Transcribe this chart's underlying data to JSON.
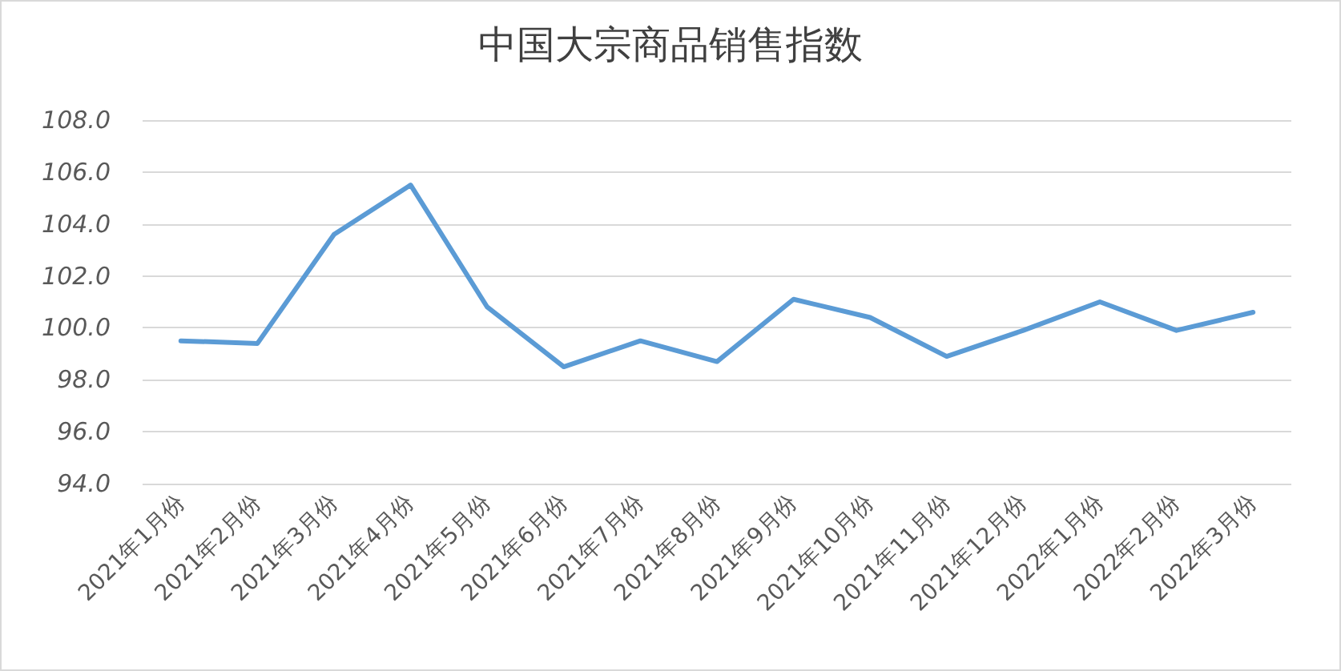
{
  "chart_data": {
    "type": "line",
    "title": "中国大宗商品销售指数",
    "categories": [
      "2021年1月份",
      "2021年2月份",
      "2021年3月份",
      "2021年4月份",
      "2021年5月份",
      "2021年6月份",
      "2021年7月份",
      "2021年8月份",
      "2021年9月份",
      "2021年10月份",
      "2021年11月份",
      "2021年12月份",
      "2022年1月份",
      "2022年2月份",
      "2022年3月份"
    ],
    "series": [
      {
        "color": "#5b9bd5",
        "values": [
          99.5,
          99.4,
          103.6,
          105.5,
          100.8,
          98.5,
          99.5,
          98.7,
          101.1,
          100.4,
          98.9,
          99.9,
          101.0,
          99.9,
          100.6
        ]
      }
    ],
    "ylim": [
      94,
      108
    ],
    "yticks": [
      {
        "value": 94,
        "label": "94.0"
      },
      {
        "value": 96,
        "label": "96.0"
      },
      {
        "value": 98,
        "label": "98.0"
      },
      {
        "value": 100,
        "label": "100.0"
      },
      {
        "value": 102,
        "label": "102.0"
      },
      {
        "value": 104,
        "label": "104.0"
      },
      {
        "value": 106,
        "label": "106.0"
      },
      {
        "value": 108,
        "label": "108.0"
      }
    ],
    "grid": "y",
    "marker": "none",
    "line_style": "solid"
  }
}
